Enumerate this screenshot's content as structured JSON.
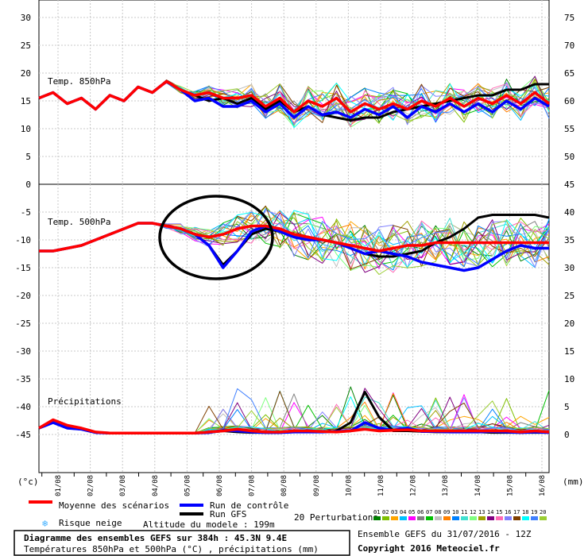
{
  "chart_data": {
    "type": "line",
    "x": [
      "01/08",
      "02/08",
      "03/08",
      "04/08",
      "05/08",
      "06/08",
      "07/08",
      "08/08",
      "09/08",
      "10/08",
      "11/08",
      "12/08",
      "13/08",
      "14/08",
      "15/08",
      "16/08"
    ],
    "left_ticks": [
      "30",
      "25",
      "20",
      "15",
      "10",
      "5",
      "0",
      "-5",
      "-10",
      "-15",
      "-20",
      "-25",
      "-30",
      "-35",
      "-40",
      "-45"
    ],
    "right_ticks": [
      "75",
      "70",
      "65",
      "60",
      "55",
      "50",
      "45",
      "40",
      "35",
      "30",
      "25",
      "20",
      "15",
      "10",
      "5",
      "0"
    ],
    "left_unit": "(°c)",
    "right_unit": "(mm)",
    "panels": [
      {
        "label": "Temp. 850hPa"
      },
      {
        "label": "Temp. 500hPa"
      },
      {
        "label": "Précipitations"
      }
    ],
    "series": [
      {
        "name": "Moyenne des scénarios",
        "color": "#ff0000",
        "t850": [
          15.5,
          16.5,
          14.5,
          15.5,
          13.5,
          16,
          15,
          17.5,
          16.5,
          18.5,
          17,
          16,
          16.5,
          15.5,
          15.5,
          16,
          14,
          15.5,
          13,
          15,
          14,
          15.5,
          13,
          14.5,
          13.5,
          14.5,
          13.5,
          15,
          14,
          15.5,
          14,
          15.5,
          14.5,
          16,
          14.5,
          16.5,
          14.5
        ],
        "t500": [
          -12,
          -12,
          -11.5,
          -11,
          -10,
          -9,
          -8,
          -7,
          -7,
          -7.5,
          -8,
          -9,
          -9.5,
          -9,
          -8,
          -7.5,
          -7.5,
          -8,
          -9,
          -9.5,
          -10,
          -10.5,
          -11,
          -11.5,
          -12,
          -11.5,
          -11,
          -11,
          -10.5,
          -10.5,
          -10.5,
          -10.5,
          -10.5,
          -10.5,
          -10.5,
          -10.5,
          -10.5
        ],
        "precip": [
          1,
          2.5,
          1.5,
          1,
          0.3,
          0.1,
          0.1,
          0.1,
          0.1,
          0.1,
          0.1,
          0.1,
          0.3,
          0.5,
          0.8,
          0.5,
          0.3,
          0.3,
          0.5,
          0.5,
          0.4,
          0.3,
          0.5,
          0.8,
          0.5,
          0.6,
          0.7,
          0.5,
          0.5,
          0.5,
          0.5,
          0.5,
          0.5,
          0.5,
          0.3,
          0.5,
          0.3
        ]
      },
      {
        "name": "Run de contrôle",
        "color": "#0000ff",
        "t850": [
          15.5,
          16.5,
          14.5,
          15.5,
          13.5,
          16,
          15,
          17.5,
          16.5,
          18.5,
          17,
          15,
          15.5,
          14,
          14,
          15,
          13,
          14.5,
          12,
          14,
          12.5,
          13,
          12,
          13.5,
          12.5,
          14,
          12,
          14,
          13,
          14.5,
          13,
          14.5,
          13,
          15,
          13.5,
          15.5,
          14
        ],
        "t500": [
          -12,
          -12,
          -11.5,
          -11,
          -10,
          -9,
          -8,
          -7,
          -7,
          -7.5,
          -8,
          -9,
          -11,
          -15,
          -12,
          -8.5,
          -7.5,
          -8.5,
          -9.5,
          -10,
          -10,
          -10.5,
          -11.5,
          -12.5,
          -12,
          -12.5,
          -13,
          -14,
          -14.5,
          -15,
          -15.5,
          -15,
          -13.5,
          -12,
          -11,
          -11.5,
          -11.5
        ],
        "precip": [
          1,
          2,
          1,
          0.8,
          0.2,
          0.1,
          0.1,
          0.1,
          0.1,
          0.1,
          0.1,
          0.1,
          0.2,
          0.6,
          0.5,
          0.3,
          0.2,
          0.2,
          0.3,
          0.3,
          0.3,
          0.4,
          0.5,
          2,
          1,
          0.6,
          1,
          0.4,
          0.4,
          0.3,
          0.3,
          0.3,
          0.4,
          0.3,
          0.2,
          0.3,
          0.2
        ]
      },
      {
        "name": "Run GFS",
        "color": "#000000",
        "t850": [
          15.5,
          16.5,
          14.5,
          15.5,
          13.5,
          16,
          15,
          17.5,
          16.5,
          18.5,
          17,
          16,
          15,
          15.5,
          14.5,
          15.5,
          13.5,
          15,
          13,
          14,
          12.5,
          12,
          11.5,
          12,
          12,
          13,
          13.5,
          14,
          14.5,
          15,
          15.5,
          16,
          16,
          17,
          17,
          18,
          18
        ],
        "t500": [
          -12,
          -12,
          -11.5,
          -11,
          -10,
          -9,
          -8,
          -7,
          -7,
          -7.5,
          -8,
          -9,
          -11,
          -14.5,
          -12,
          -9,
          -8,
          -8.5,
          -9.5,
          -10,
          -10,
          -10.5,
          -11.5,
          -12.5,
          -13,
          -13,
          -12.5,
          -12,
          -10.5,
          -9.5,
          -8,
          -6,
          -5.5,
          -5.5,
          -5.5,
          -5.5,
          -6
        ],
        "precip": [
          1,
          2,
          1,
          0.8,
          0.2,
          0.1,
          0.1,
          0.1,
          0.1,
          0.1,
          0.1,
          0.1,
          0.2,
          0.5,
          0.3,
          0.2,
          0.2,
          0.2,
          0.3,
          0.3,
          0.3,
          0.5,
          2,
          7.5,
          3,
          0.5,
          0.5,
          0.4,
          0.3,
          0.3,
          0.3,
          0.3,
          0.2,
          0.2,
          0.2,
          0.2,
          0.2
        ]
      }
    ],
    "perturbation_colors": [
      "#008000",
      "#7fbf00",
      "#ffa500",
      "#00bfff",
      "#ff00ff",
      "#808080",
      "#00c000",
      "#c0c0c0",
      "#ff8000",
      "#0080ff",
      "#40e0d0",
      "#80ff80",
      "#a0a000",
      "#800080",
      "#ff69b4",
      "#8080ff",
      "#804000",
      "#00ffff",
      "#4080ff",
      "#9acd32"
    ]
  },
  "legend": {
    "mean_label": "Moyenne des scénarios",
    "control_label": "Run de contrôle",
    "gfs_label": "Run GFS",
    "snow_label": "Risque neige",
    "altitude_label": "Altitude du modele : 199m",
    "perturbations_label": "20 Perturbations",
    "perturbation_numbers": [
      "01",
      "02",
      "03",
      "04",
      "05",
      "06",
      "07",
      "08",
      "09",
      "10",
      "11",
      "12",
      "13",
      "14",
      "15",
      "16",
      "17",
      "18",
      "19",
      "20"
    ],
    "colors": {
      "mean": "#ff0000",
      "control": "#0000ff",
      "gfs": "#000000",
      "snow": "#40b0ff"
    }
  },
  "footer": {
    "title": "Diagramme des ensembles GEFS sur 384h : 45.3N 9.4E",
    "subtitle": "Températures 850hPa et 500hPa (°C) , précipitations (mm)",
    "run": "Ensemble GEFS du 31/07/2016 - 12Z",
    "copyright": "Copyright 2016 Meteociel.fr"
  }
}
